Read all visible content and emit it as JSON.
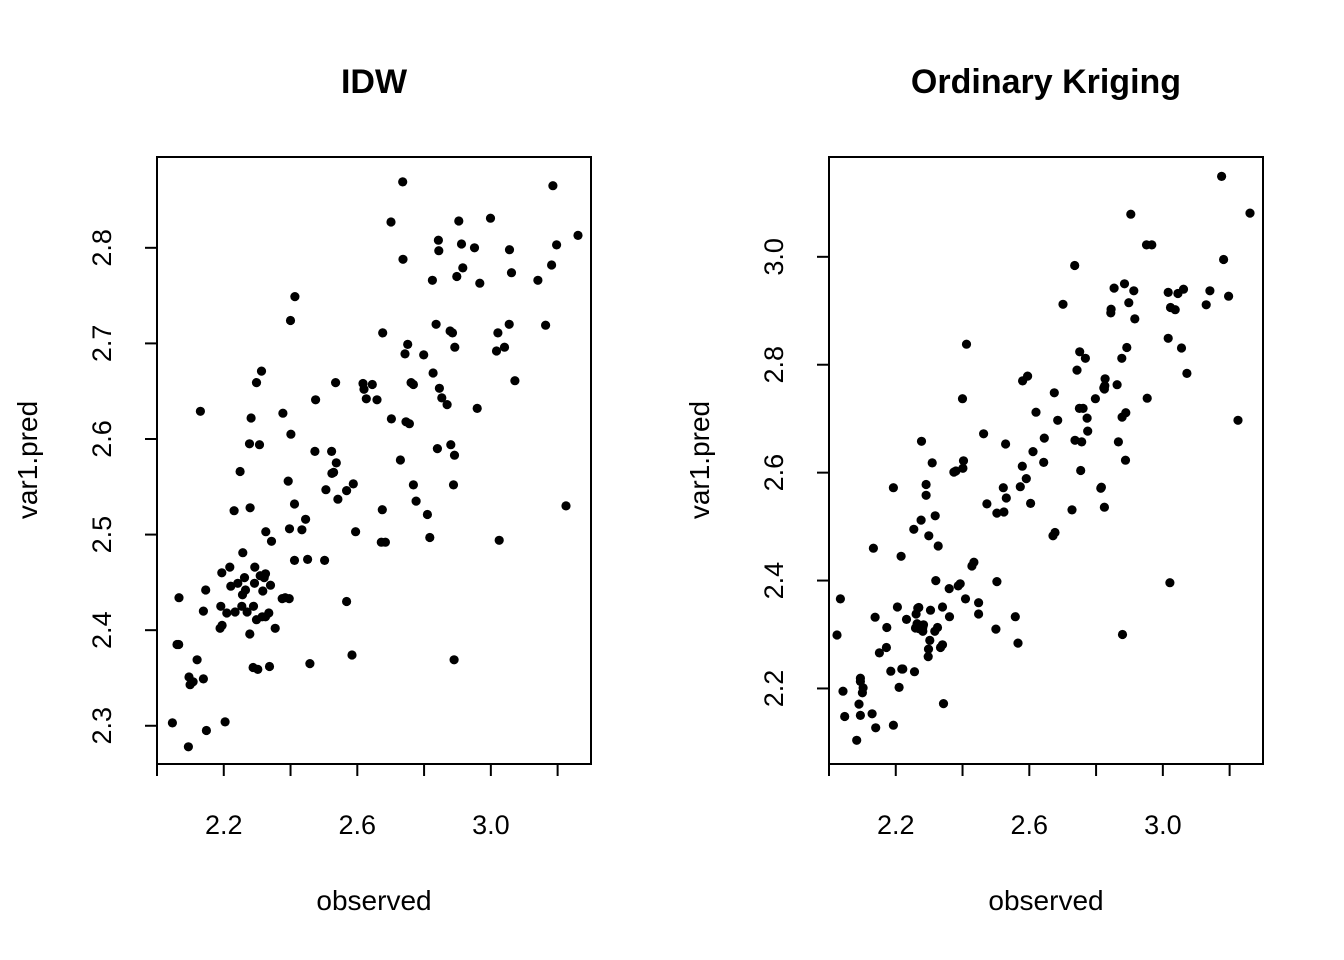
{
  "chart_data": [
    {
      "type": "scatter",
      "title": "IDW",
      "xlabel": "observed",
      "ylabel": "var1.pred",
      "xlim": [
        2.0,
        3.3
      ],
      "ylim": [
        2.26,
        2.895
      ],
      "xticks": [
        "2.2",
        "2.6",
        "3.0"
      ],
      "x_minor_ticks": [
        2.0,
        2.2,
        2.4,
        2.6,
        2.8,
        3.0,
        3.2
      ],
      "yticks": [
        "2.3",
        "2.4",
        "2.5",
        "2.6",
        "2.7",
        "2.8"
      ],
      "grid": false,
      "marker_color": "#000000",
      "points": [
        [
          2.736,
          2.869
        ],
        [
          3.186,
          2.865
        ],
        [
          2.701,
          2.827
        ],
        [
          2.999,
          2.831
        ],
        [
          2.904,
          2.828
        ],
        [
          3.261,
          2.813
        ],
        [
          2.843,
          2.808
        ],
        [
          2.912,
          2.804
        ],
        [
          3.197,
          2.803
        ],
        [
          2.951,
          2.8
        ],
        [
          3.056,
          2.798
        ],
        [
          2.844,
          2.797
        ],
        [
          2.737,
          2.788
        ],
        [
          3.182,
          2.782
        ],
        [
          2.916,
          2.779
        ],
        [
          3.062,
          2.774
        ],
        [
          2.898,
          2.77
        ],
        [
          2.825,
          2.766
        ],
        [
          3.141,
          2.766
        ],
        [
          2.967,
          2.763
        ],
        [
          2.413,
          2.749
        ],
        [
          2.4,
          2.724
        ],
        [
          2.836,
          2.72
        ],
        [
          3.055,
          2.72
        ],
        [
          3.164,
          2.719
        ],
        [
          2.878,
          2.713
        ],
        [
          2.885,
          2.711
        ],
        [
          2.676,
          2.711
        ],
        [
          3.021,
          2.711
        ],
        [
          2.751,
          2.699
        ],
        [
          2.892,
          2.696
        ],
        [
          3.041,
          2.696
        ],
        [
          3.017,
          2.692
        ],
        [
          2.743,
          2.689
        ],
        [
          2.799,
          2.688
        ],
        [
          2.313,
          2.671
        ],
        [
          2.827,
          2.669
        ],
        [
          3.072,
          2.661
        ],
        [
          2.298,
          2.659
        ],
        [
          2.535,
          2.659
        ],
        [
          2.761,
          2.659
        ],
        [
          2.617,
          2.658
        ],
        [
          2.645,
          2.657
        ],
        [
          2.768,
          2.657
        ],
        [
          2.62,
          2.652
        ],
        [
          2.846,
          2.653
        ],
        [
          2.853,
          2.643
        ],
        [
          2.627,
          2.642
        ],
        [
          2.475,
          2.641
        ],
        [
          2.659,
          2.641
        ],
        [
          2.869,
          2.636
        ],
        [
          2.959,
          2.632
        ],
        [
          2.377,
          2.627
        ],
        [
          2.282,
          2.622
        ],
        [
          2.13,
          2.629
        ],
        [
          2.702,
          2.621
        ],
        [
          2.746,
          2.618
        ],
        [
          2.756,
          2.616
        ],
        [
          2.401,
          2.605
        ],
        [
          2.277,
          2.595
        ],
        [
          2.307,
          2.594
        ],
        [
          2.88,
          2.594
        ],
        [
          2.473,
          2.587
        ],
        [
          2.523,
          2.587
        ],
        [
          2.84,
          2.59
        ],
        [
          2.891,
          2.583
        ],
        [
          2.729,
          2.578
        ],
        [
          2.537,
          2.575
        ],
        [
          2.529,
          2.565
        ],
        [
          2.524,
          2.564
        ],
        [
          2.249,
          2.566
        ],
        [
          2.588,
          2.553
        ],
        [
          2.768,
          2.552
        ],
        [
          2.888,
          2.552
        ],
        [
          2.568,
          2.546
        ],
        [
          2.506,
          2.547
        ],
        [
          2.393,
          2.556
        ],
        [
          2.542,
          2.537
        ],
        [
          2.776,
          2.535
        ],
        [
          2.412,
          2.532
        ],
        [
          3.225,
          2.53
        ],
        [
          2.279,
          2.528
        ],
        [
          2.675,
          2.526
        ],
        [
          2.81,
          2.521
        ],
        [
          2.231,
          2.525
        ],
        [
          2.445,
          2.516
        ],
        [
          2.326,
          2.503
        ],
        [
          2.397,
          2.506
        ],
        [
          2.595,
          2.503
        ],
        [
          2.434,
          2.505
        ],
        [
          2.343,
          2.493
        ],
        [
          2.817,
          2.497
        ],
        [
          2.684,
          2.492
        ],
        [
          3.025,
          2.494
        ],
        [
          2.672,
          2.492
        ],
        [
          2.412,
          2.473
        ],
        [
          2.257,
          2.481
        ],
        [
          2.451,
          2.474
        ],
        [
          2.502,
          2.473
        ],
        [
          2.293,
          2.466
        ],
        [
          2.218,
          2.466
        ],
        [
          2.325,
          2.459
        ],
        [
          2.194,
          2.46
        ],
        [
          2.262,
          2.455
        ],
        [
          2.309,
          2.457
        ],
        [
          2.321,
          2.455
        ],
        [
          2.242,
          2.449
        ],
        [
          2.292,
          2.449
        ],
        [
          2.34,
          2.447
        ],
        [
          2.317,
          2.441
        ],
        [
          2.265,
          2.442
        ],
        [
          2.221,
          2.446
        ],
        [
          2.146,
          2.442
        ],
        [
          2.256,
          2.437
        ],
        [
          2.384,
          2.434
        ],
        [
          2.375,
          2.433
        ],
        [
          2.396,
          2.433
        ],
        [
          2.066,
          2.434
        ],
        [
          2.254,
          2.425
        ],
        [
          2.191,
          2.425
        ],
        [
          2.289,
          2.425
        ],
        [
          2.568,
          2.43
        ],
        [
          2.234,
          2.419
        ],
        [
          2.27,
          2.419
        ],
        [
          2.209,
          2.418
        ],
        [
          2.139,
          2.42
        ],
        [
          2.335,
          2.418
        ],
        [
          2.315,
          2.414
        ],
        [
          2.325,
          2.414
        ],
        [
          2.298,
          2.411
        ],
        [
          2.195,
          2.405
        ],
        [
          2.189,
          2.402
        ],
        [
          2.354,
          2.402
        ],
        [
          2.278,
          2.396
        ],
        [
          2.06,
          2.385
        ],
        [
          2.065,
          2.385
        ],
        [
          2.584,
          2.374
        ],
        [
          2.89,
          2.369
        ],
        [
          2.458,
          2.365
        ],
        [
          2.337,
          2.362
        ],
        [
          2.12,
          2.369
        ],
        [
          2.288,
          2.361
        ],
        [
          2.302,
          2.359
        ],
        [
          2.096,
          2.351
        ],
        [
          2.139,
          2.349
        ],
        [
          2.099,
          2.343
        ],
        [
          2.108,
          2.346
        ],
        [
          2.204,
          2.304
        ],
        [
          2.148,
          2.295
        ],
        [
          2.046,
          2.303
        ],
        [
          2.094,
          2.278
        ]
      ]
    },
    {
      "type": "scatter",
      "title": "Ordinary Kriging",
      "xlabel": "observed",
      "ylabel": "var1.pred",
      "xlim": [
        2.0,
        3.3
      ],
      "ylim": [
        2.06,
        3.185
      ],
      "xticks": [
        "2.2",
        "2.6",
        "3.0"
      ],
      "x_minor_ticks": [
        2.0,
        2.2,
        2.4,
        2.6,
        2.8,
        3.0,
        3.2
      ],
      "yticks": [
        "2.2",
        "2.4",
        "2.6",
        "2.8",
        "3.0"
      ],
      "grid": false,
      "marker_color": "#000000",
      "points": [
        [
          3.176,
          3.149
        ],
        [
          3.261,
          3.081
        ],
        [
          2.904,
          3.079
        ],
        [
          2.951,
          3.022
        ],
        [
          2.967,
          3.022
        ],
        [
          2.736,
          2.984
        ],
        [
          3.182,
          2.995
        ],
        [
          2.885,
          2.95
        ],
        [
          2.913,
          2.937
        ],
        [
          2.854,
          2.942
        ],
        [
          3.062,
          2.94
        ],
        [
          3.141,
          2.937
        ],
        [
          3.045,
          2.932
        ],
        [
          3.016,
          2.934
        ],
        [
          3.197,
          2.927
        ],
        [
          2.701,
          2.912
        ],
        [
          2.898,
          2.915
        ],
        [
          3.13,
          2.911
        ],
        [
          3.023,
          2.906
        ],
        [
          3.037,
          2.902
        ],
        [
          2.844,
          2.896
        ],
        [
          2.845,
          2.903
        ],
        [
          2.916,
          2.885
        ],
        [
          3.225,
          2.697
        ],
        [
          2.412,
          2.838
        ],
        [
          3.016,
          2.849
        ],
        [
          3.056,
          2.831
        ],
        [
          2.892,
          2.832
        ],
        [
          2.751,
          2.824
        ],
        [
          2.877,
          2.812
        ],
        [
          2.768,
          2.812
        ],
        [
          3.072,
          2.784
        ],
        [
          2.743,
          2.79
        ],
        [
          2.595,
          2.779
        ],
        [
          2.827,
          2.774
        ],
        [
          2.826,
          2.761
        ],
        [
          2.823,
          2.757
        ],
        [
          2.825,
          2.755
        ],
        [
          2.863,
          2.763
        ],
        [
          2.953,
          2.738
        ],
        [
          2.58,
          2.77
        ],
        [
          2.798,
          2.737
        ],
        [
          2.4,
          2.737
        ],
        [
          2.761,
          2.719
        ],
        [
          2.675,
          2.748
        ],
        [
          2.62,
          2.712
        ],
        [
          2.685,
          2.697
        ],
        [
          2.889,
          2.711
        ],
        [
          2.75,
          2.719
        ],
        [
          2.645,
          2.664
        ],
        [
          2.773,
          2.701
        ],
        [
          2.775,
          2.677
        ],
        [
          2.878,
          2.703
        ],
        [
          2.737,
          2.66
        ],
        [
          2.757,
          2.657
        ],
        [
          2.463,
          2.672
        ],
        [
          2.529,
          2.653
        ],
        [
          2.867,
          2.657
        ],
        [
          2.277,
          2.658
        ],
        [
          2.611,
          2.639
        ],
        [
          2.643,
          2.619
        ],
        [
          2.309,
          2.618
        ],
        [
          2.38,
          2.603
        ],
        [
          2.403,
          2.622
        ],
        [
          2.579,
          2.612
        ],
        [
          2.888,
          2.623
        ],
        [
          2.754,
          2.604
        ],
        [
          2.401,
          2.608
        ],
        [
          2.374,
          2.601
        ],
        [
          2.193,
          2.572
        ],
        [
          2.291,
          2.578
        ],
        [
          2.522,
          2.572
        ],
        [
          2.591,
          2.589
        ],
        [
          2.573,
          2.574
        ],
        [
          2.671,
          2.483
        ],
        [
          2.677,
          2.489
        ],
        [
          2.604,
          2.543
        ],
        [
          2.531,
          2.553
        ],
        [
          2.291,
          2.558
        ],
        [
          2.814,
          2.571
        ],
        [
          2.816,
          2.573
        ],
        [
          2.825,
          2.536
        ],
        [
          2.728,
          2.531
        ],
        [
          2.524,
          2.527
        ],
        [
          2.503,
          2.525
        ],
        [
          2.473,
          2.542
        ],
        [
          2.254,
          2.495
        ],
        [
          2.318,
          2.52
        ],
        [
          2.276,
          2.512
        ],
        [
          2.327,
          2.464
        ],
        [
          2.299,
          2.483
        ],
        [
          2.434,
          2.434
        ],
        [
          2.428,
          2.427
        ],
        [
          2.216,
          2.445
        ],
        [
          2.133,
          2.46
        ],
        [
          2.503,
          2.398
        ],
        [
          2.32,
          2.4
        ],
        [
          3.021,
          2.396
        ],
        [
          2.393,
          2.394
        ],
        [
          2.387,
          2.39
        ],
        [
          2.409,
          2.366
        ],
        [
          2.36,
          2.385
        ],
        [
          2.448,
          2.359
        ],
        [
          2.34,
          2.351
        ],
        [
          2.266,
          2.349
        ],
        [
          2.304,
          2.345
        ],
        [
          2.269,
          2.35
        ],
        [
          2.205,
          2.351
        ],
        [
          2.448,
          2.338
        ],
        [
          2.261,
          2.338
        ],
        [
          2.361,
          2.333
        ],
        [
          2.558,
          2.333
        ],
        [
          2.138,
          2.332
        ],
        [
          2.232,
          2.328
        ],
        [
          2.283,
          2.318
        ],
        [
          2.264,
          2.32
        ],
        [
          2.281,
          2.313
        ],
        [
          2.325,
          2.313
        ],
        [
          2.259,
          2.312
        ],
        [
          2.173,
          2.313
        ],
        [
          2.281,
          2.306
        ],
        [
          2.317,
          2.306
        ],
        [
          2.5,
          2.31
        ],
        [
          2.27,
          2.311
        ],
        [
          2.024,
          2.299
        ],
        [
          2.879,
          2.3
        ],
        [
          2.34,
          2.281
        ],
        [
          2.334,
          2.276
        ],
        [
          2.302,
          2.289
        ],
        [
          2.566,
          2.284
        ],
        [
          2.172,
          2.276
        ],
        [
          2.298,
          2.273
        ],
        [
          2.151,
          2.266
        ],
        [
          2.297,
          2.259
        ],
        [
          2.218,
          2.236
        ],
        [
          2.221,
          2.236
        ],
        [
          2.256,
          2.231
        ],
        [
          2.185,
          2.232
        ],
        [
          2.094,
          2.213
        ],
        [
          2.094,
          2.219
        ],
        [
          2.21,
          2.202
        ],
        [
          2.102,
          2.201
        ],
        [
          2.042,
          2.195
        ],
        [
          2.1,
          2.192
        ],
        [
          2.09,
          2.171
        ],
        [
          2.343,
          2.172
        ],
        [
          2.129,
          2.153
        ],
        [
          2.094,
          2.15
        ],
        [
          2.047,
          2.148
        ],
        [
          2.14,
          2.127
        ],
        [
          2.193,
          2.132
        ],
        [
          2.083,
          2.104
        ],
        [
          2.034,
          2.366
        ]
      ]
    }
  ]
}
